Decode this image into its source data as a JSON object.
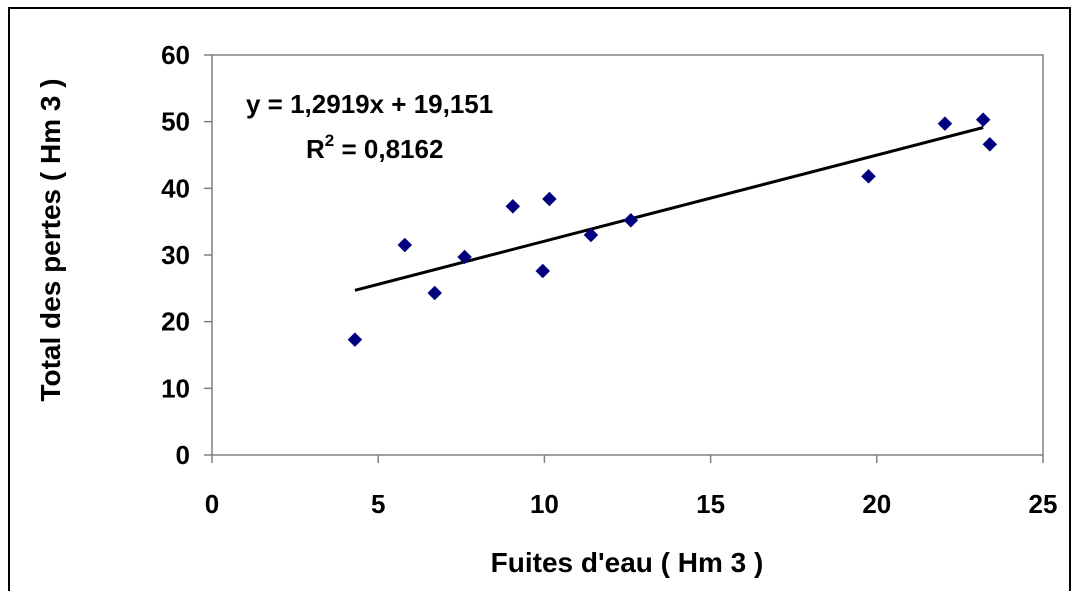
{
  "chart_data": {
    "type": "scatter",
    "xlabel": "Fuites d'eau ( Hm 3 )",
    "ylabel": "Total des pertes ( Hm 3 )",
    "xlim": [
      0,
      25
    ],
    "ylim": [
      0,
      60
    ],
    "x_ticks": [
      0,
      5,
      10,
      15,
      20,
      25
    ],
    "y_ticks": [
      0,
      10,
      20,
      30,
      40,
      50,
      60
    ],
    "grid": false,
    "legend": "none",
    "marker": "diamond",
    "marker_color": "#00007f",
    "series": [
      {
        "points": [
          {
            "x": 4.3,
            "y": 17.3
          },
          {
            "x": 5.8,
            "y": 31.5
          },
          {
            "x": 6.7,
            "y": 24.3
          },
          {
            "x": 7.6,
            "y": 29.7
          },
          {
            "x": 9.05,
            "y": 37.3
          },
          {
            "x": 9.95,
            "y": 27.6
          },
          {
            "x": 10.15,
            "y": 38.4
          },
          {
            "x": 11.4,
            "y": 33.0
          },
          {
            "x": 12.6,
            "y": 35.2
          },
          {
            "x": 19.75,
            "y": 41.8
          },
          {
            "x": 22.05,
            "y": 49.7
          },
          {
            "x": 23.2,
            "y": 50.3
          },
          {
            "x": 23.4,
            "y": 46.6
          }
        ]
      }
    ],
    "trendline": {
      "type": "linear",
      "slope": 1.2919,
      "intercept": 19.151,
      "x_range": [
        4.3,
        23.2
      ],
      "color": "#000000",
      "equation_label": "y = 1,2919x + 19,151",
      "r2_prefix": "R",
      "r2_superscript": "2",
      "r2_value": " = 0,8162"
    }
  }
}
